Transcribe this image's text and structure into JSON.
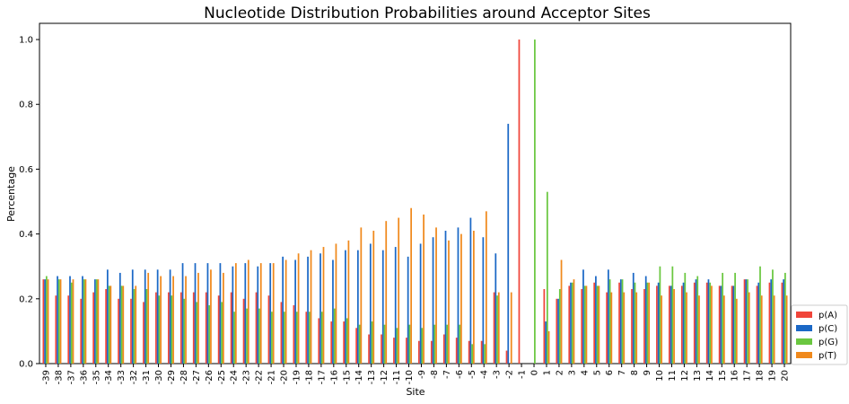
{
  "chart_data": {
    "type": "bar",
    "title": "Nucleotide Distribution Probabilities around Acceptor Sites",
    "xlabel": "Site",
    "ylabel": "Percentage",
    "ylim": [
      0,
      1.05
    ],
    "yticks": [
      "0.0",
      "0.2",
      "0.4",
      "0.6",
      "0.8",
      "1.0"
    ],
    "legend_position": "lower-right",
    "categories": [
      "-39",
      "-38",
      "-37",
      "-36",
      "-35",
      "-34",
      "-33",
      "-32",
      "-31",
      "-30",
      "-29",
      "-28",
      "-27",
      "-26",
      "-25",
      "-24",
      "-23",
      "-22",
      "-21",
      "-20",
      "-19",
      "-18",
      "-17",
      "-16",
      "-15",
      "-14",
      "-13",
      "-12",
      "-11",
      "-10",
      "-9",
      "-8",
      "-7",
      "-6",
      "-5",
      "-4",
      "-3",
      "-2",
      "-1",
      "0",
      "1",
      "2",
      "3",
      "4",
      "5",
      "6",
      "7",
      "8",
      "9",
      "10",
      "11",
      "12",
      "13",
      "14",
      "15",
      "16",
      "17",
      "18",
      "19",
      "20"
    ],
    "series": [
      {
        "name": "p(A)",
        "color": "#f0453a",
        "values": [
          0.26,
          0.21,
          0.21,
          0.2,
          0.22,
          0.23,
          0.2,
          0.2,
          0.19,
          0.22,
          0.22,
          0.22,
          0.22,
          0.22,
          0.21,
          0.22,
          0.2,
          0.22,
          0.21,
          0.19,
          0.18,
          0.16,
          0.14,
          0.13,
          0.13,
          0.11,
          0.09,
          0.09,
          0.08,
          0.08,
          0.07,
          0.07,
          0.09,
          0.08,
          0.07,
          0.07,
          0.22,
          0.04,
          1.0,
          0.0,
          0.23,
          0.2,
          0.24,
          0.23,
          0.25,
          0.22,
          0.25,
          0.23,
          0.23,
          0.24,
          0.24,
          0.24,
          0.25,
          0.25,
          0.24,
          0.24,
          0.26,
          0.24,
          0.25,
          0.25
        ]
      },
      {
        "name": "p(C)",
        "color": "#1b68c6",
        "values": [
          0.26,
          0.27,
          0.27,
          0.27,
          0.26,
          0.29,
          0.28,
          0.29,
          0.29,
          0.29,
          0.29,
          0.31,
          0.31,
          0.31,
          0.31,
          0.3,
          0.31,
          0.3,
          0.31,
          0.33,
          0.32,
          0.33,
          0.34,
          0.32,
          0.35,
          0.35,
          0.37,
          0.35,
          0.36,
          0.33,
          0.37,
          0.39,
          0.41,
          0.42,
          0.45,
          0.39,
          0.34,
          0.74,
          0.0,
          0.0,
          0.13,
          0.2,
          0.25,
          0.29,
          0.27,
          0.29,
          0.26,
          0.28,
          0.27,
          0.25,
          0.24,
          0.25,
          0.26,
          0.26,
          0.24,
          0.24,
          0.26,
          0.25,
          0.26,
          0.26
        ]
      },
      {
        "name": "p(G)",
        "color": "#6ac740",
        "values": [
          0.27,
          0.26,
          0.25,
          0.26,
          0.26,
          0.24,
          0.24,
          0.23,
          0.23,
          0.21,
          0.21,
          0.2,
          0.19,
          0.18,
          0.19,
          0.16,
          0.17,
          0.17,
          0.16,
          0.16,
          0.16,
          0.16,
          0.16,
          0.17,
          0.14,
          0.12,
          0.13,
          0.12,
          0.11,
          0.12,
          0.11,
          0.12,
          0.12,
          0.12,
          0.06,
          0.06,
          0.21,
          0.0,
          0.0,
          1.0,
          0.53,
          0.23,
          0.25,
          0.24,
          0.24,
          0.26,
          0.26,
          0.25,
          0.25,
          0.3,
          0.3,
          0.28,
          0.27,
          0.25,
          0.28,
          0.28,
          0.26,
          0.3,
          0.29,
          0.28
        ]
      },
      {
        "name": "p(T)",
        "color": "#f0891c",
        "values": [
          0.26,
          0.26,
          0.26,
          0.26,
          0.26,
          0.24,
          0.24,
          0.24,
          0.28,
          0.27,
          0.27,
          0.27,
          0.28,
          0.29,
          0.28,
          0.31,
          0.32,
          0.31,
          0.31,
          0.32,
          0.34,
          0.35,
          0.36,
          0.37,
          0.38,
          0.42,
          0.41,
          0.44,
          0.45,
          0.48,
          0.46,
          0.42,
          0.38,
          0.4,
          0.41,
          0.47,
          0.22,
          0.22,
          0.0,
          0.0,
          0.1,
          0.32,
          0.26,
          0.24,
          0.24,
          0.22,
          0.22,
          0.22,
          0.25,
          0.21,
          0.23,
          0.22,
          0.21,
          0.24,
          0.21,
          0.2,
          0.22,
          0.21,
          0.21,
          0.21
        ]
      }
    ]
  }
}
